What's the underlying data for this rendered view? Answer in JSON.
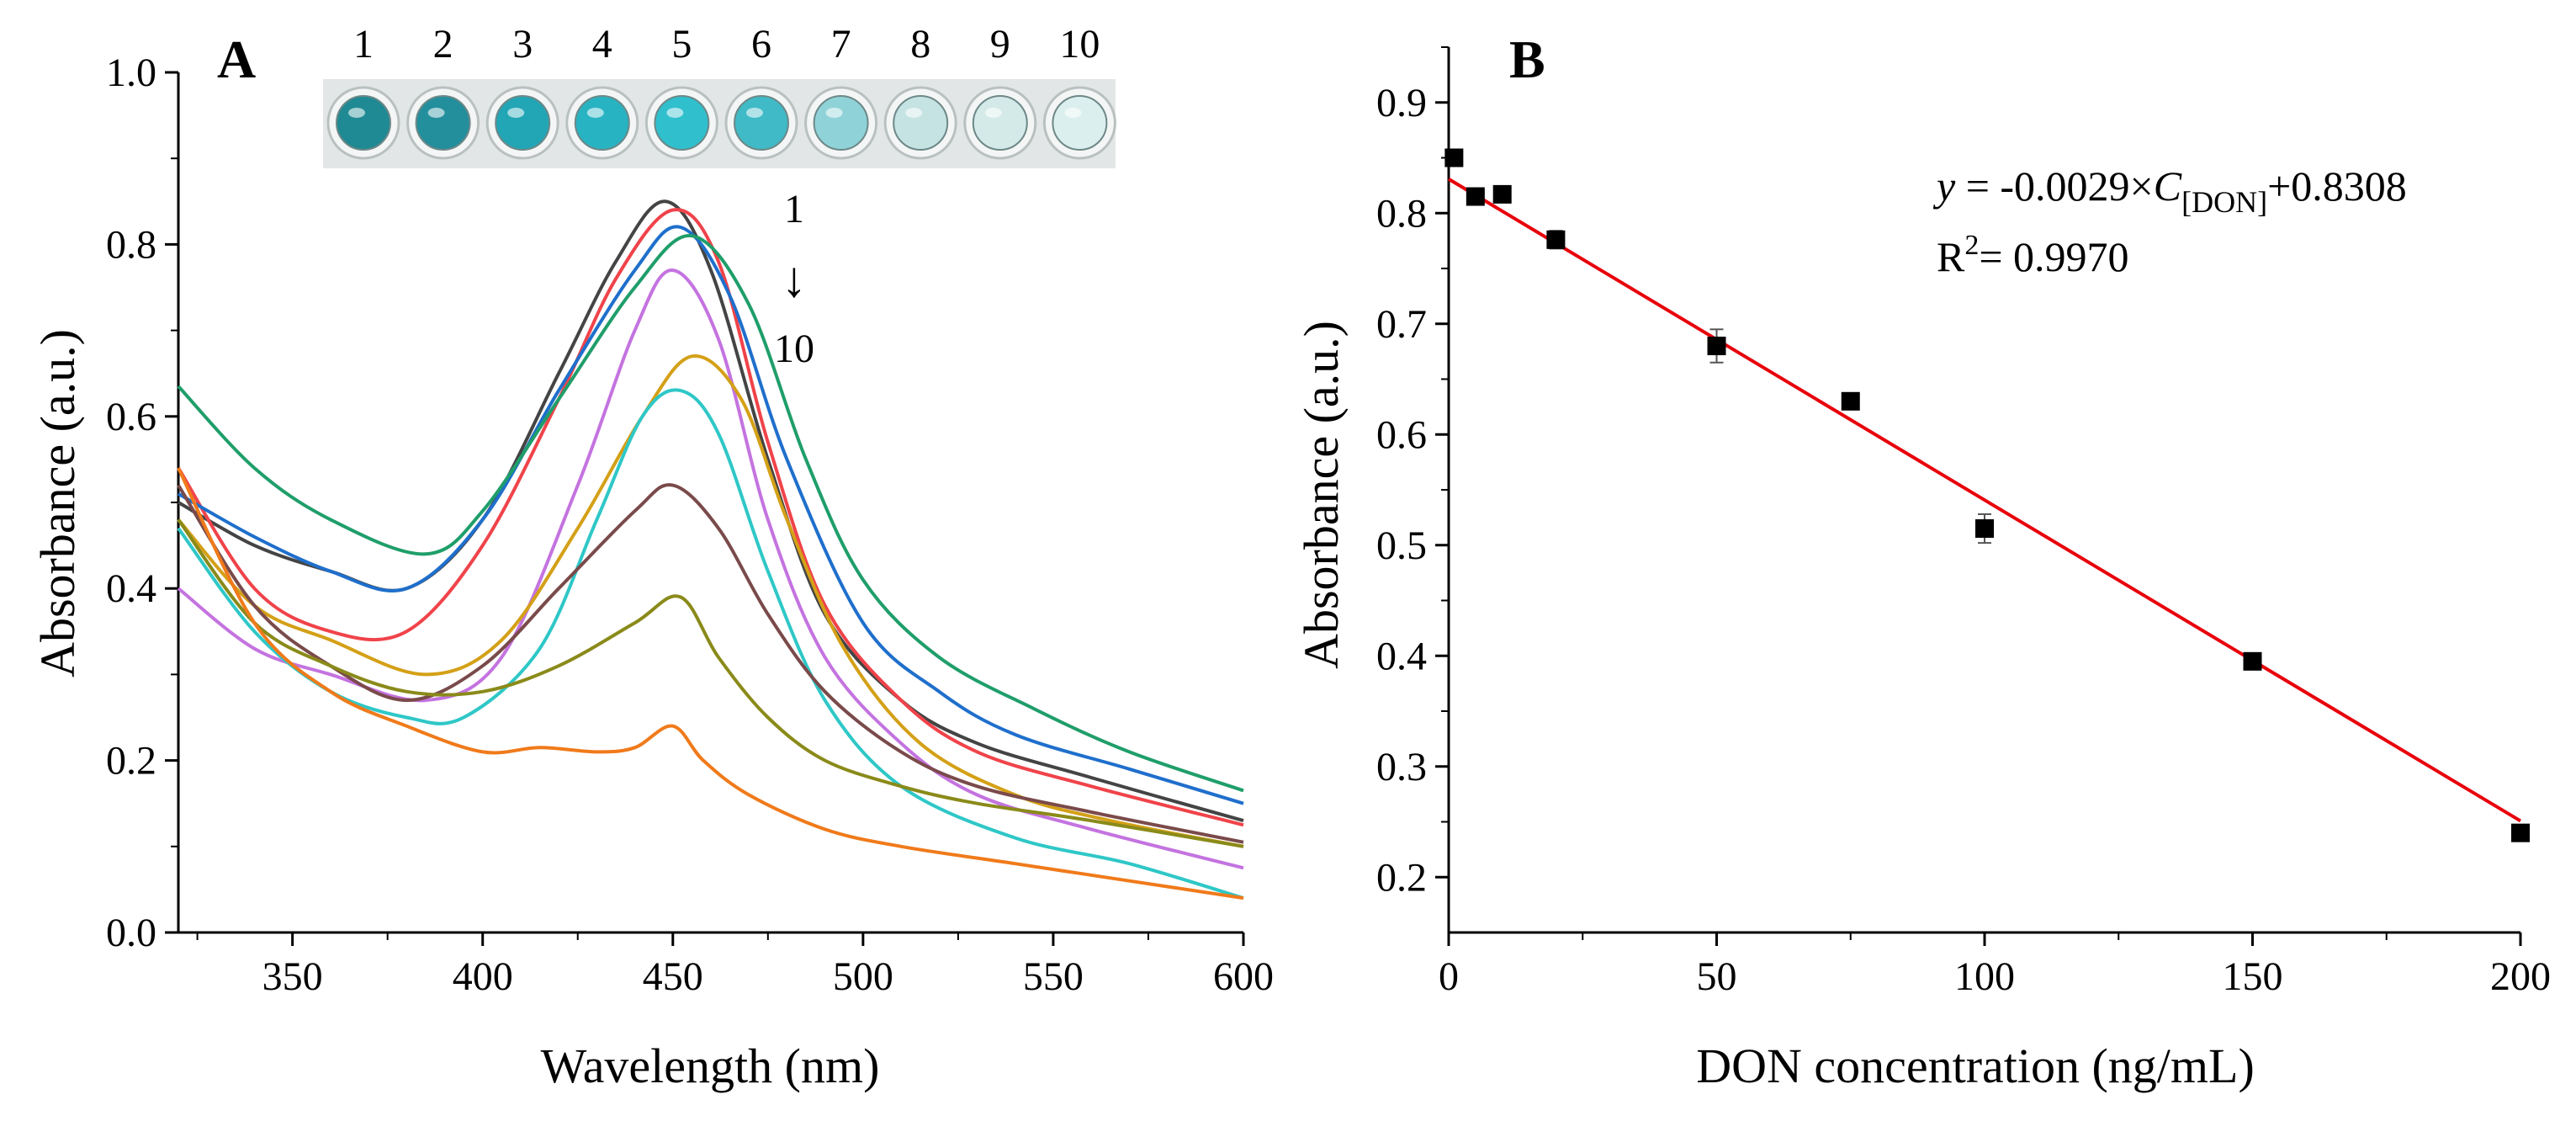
{
  "inset": {
    "well_labels": [
      "1",
      "2",
      "3",
      "4",
      "5",
      "6",
      "7",
      "8",
      "9",
      "10"
    ],
    "well_colors": [
      "#1f8a93",
      "#238f9c",
      "#22a6b5",
      "#28b3c2",
      "#2fbfcd",
      "#3fbac6",
      "#8fd3d8",
      "#c4e3e2",
      "#d3eae9",
      "#dbefee"
    ]
  },
  "chart_data": [
    {
      "type": "line",
      "panel_label": "A",
      "title": "",
      "xlabel": "Wavelength (nm)",
      "ylabel": "Absorbance (a.u.)",
      "xlim": [
        320,
        600
      ],
      "ylim": [
        0.0,
        1.0
      ],
      "xticks": [
        350,
        400,
        450,
        500,
        550,
        600
      ],
      "xtick_labels": [
        "350",
        "400",
        "450",
        "500",
        "550",
        "600"
      ],
      "yticks": [
        0.0,
        0.2,
        0.4,
        0.6,
        0.8,
        1.0
      ],
      "ytick_labels": [
        "0.0",
        "0.2",
        "0.4",
        "0.6",
        "0.8",
        "1.0"
      ],
      "annotation": {
        "top": "1",
        "arrow": "↓",
        "bottom": "10"
      },
      "series": [
        {
          "name": "1",
          "color": "#444444",
          "x": [
            320,
            340,
            360,
            380,
            400,
            420,
            435,
            448,
            460,
            475,
            490,
            510,
            530,
            560,
            600
          ],
          "y": [
            0.5,
            0.45,
            0.42,
            0.4,
            0.48,
            0.65,
            0.78,
            0.85,
            0.77,
            0.55,
            0.37,
            0.27,
            0.22,
            0.18,
            0.13
          ]
        },
        {
          "name": "2",
          "color": "#f0434a",
          "x": [
            320,
            340,
            360,
            380,
            400,
            420,
            435,
            450,
            462,
            475,
            490,
            510,
            530,
            560,
            600
          ],
          "y": [
            0.54,
            0.4,
            0.35,
            0.35,
            0.45,
            0.62,
            0.76,
            0.84,
            0.78,
            0.57,
            0.38,
            0.27,
            0.21,
            0.17,
            0.125
          ]
        },
        {
          "name": "3",
          "color": "#1f6fcc",
          "x": [
            320,
            340,
            360,
            380,
            400,
            420,
            440,
            452,
            465,
            480,
            500,
            520,
            540,
            570,
            600
          ],
          "y": [
            0.51,
            0.46,
            0.42,
            0.4,
            0.48,
            0.63,
            0.77,
            0.82,
            0.74,
            0.55,
            0.36,
            0.28,
            0.23,
            0.19,
            0.15
          ]
        },
        {
          "name": "4",
          "color": "#1f9e6a",
          "x": [
            320,
            340,
            360,
            385,
            400,
            420,
            440,
            455,
            470,
            485,
            500,
            520,
            545,
            570,
            600
          ],
          "y": [
            0.635,
            0.54,
            0.48,
            0.44,
            0.49,
            0.62,
            0.75,
            0.81,
            0.73,
            0.55,
            0.41,
            0.32,
            0.26,
            0.21,
            0.165
          ]
        },
        {
          "name": "5",
          "color": "#c473e0",
          "x": [
            320,
            340,
            360,
            385,
            405,
            425,
            440,
            450,
            462,
            475,
            490,
            510,
            530,
            560,
            600
          ],
          "y": [
            0.4,
            0.33,
            0.3,
            0.27,
            0.32,
            0.52,
            0.7,
            0.77,
            0.69,
            0.48,
            0.32,
            0.22,
            0.16,
            0.12,
            0.075
          ]
        },
        {
          "name": "6",
          "color": "#d4a017",
          "x": [
            320,
            340,
            360,
            385,
            405,
            425,
            442,
            455,
            468,
            480,
            495,
            515,
            540,
            565,
            600
          ],
          "y": [
            0.48,
            0.38,
            0.34,
            0.3,
            0.34,
            0.47,
            0.6,
            0.67,
            0.62,
            0.48,
            0.33,
            0.22,
            0.16,
            0.13,
            0.1
          ]
        },
        {
          "name": "7",
          "color": "#2fc7c7",
          "x": [
            320,
            340,
            360,
            380,
            395,
            415,
            430,
            442,
            452,
            462,
            475,
            490,
            510,
            540,
            570,
            600
          ],
          "y": [
            0.47,
            0.35,
            0.28,
            0.25,
            0.25,
            0.33,
            0.48,
            0.6,
            0.63,
            0.58,
            0.42,
            0.27,
            0.17,
            0.11,
            0.08,
            0.04
          ]
        },
        {
          "name": "8",
          "color": "#7a4a4a",
          "x": [
            320,
            340,
            360,
            380,
            400,
            420,
            440,
            450,
            462,
            475,
            490,
            510,
            530,
            560,
            600
          ],
          "y": [
            0.52,
            0.38,
            0.31,
            0.27,
            0.31,
            0.4,
            0.49,
            0.52,
            0.47,
            0.37,
            0.28,
            0.21,
            0.17,
            0.14,
            0.105
          ]
        },
        {
          "name": "9",
          "color": "#8a8a1a",
          "x": [
            320,
            340,
            360,
            380,
            400,
            420,
            440,
            452,
            462,
            475,
            490,
            510,
            530,
            560,
            600
          ],
          "y": [
            0.48,
            0.36,
            0.31,
            0.28,
            0.28,
            0.31,
            0.36,
            0.39,
            0.32,
            0.25,
            0.2,
            0.17,
            0.15,
            0.13,
            0.1
          ]
        },
        {
          "name": "10",
          "color": "#f07a1a",
          "x": [
            320,
            340,
            360,
            380,
            400,
            415,
            430,
            440,
            450,
            458,
            470,
            490,
            510,
            540,
            570,
            600
          ],
          "y": [
            0.54,
            0.36,
            0.28,
            0.24,
            0.21,
            0.215,
            0.21,
            0.215,
            0.24,
            0.2,
            0.16,
            0.12,
            0.1,
            0.08,
            0.06,
            0.04
          ]
        }
      ]
    },
    {
      "type": "scatter",
      "panel_label": "B",
      "title": "",
      "xlabel": "DON concentration (ng/mL)",
      "ylabel": "Absorbance (a.u.)",
      "xlim": [
        0,
        200
      ],
      "ylim": [
        0.15,
        0.95
      ],
      "xticks": [
        0,
        50,
        100,
        150,
        200
      ],
      "xtick_labels": [
        "0",
        "50",
        "100",
        "150",
        "200"
      ],
      "yticks": [
        0.2,
        0.3,
        0.4,
        0.5,
        0.6,
        0.7,
        0.8,
        0.9
      ],
      "ytick_labels": [
        "0.2",
        "0.3",
        "0.4",
        "0.5",
        "0.6",
        "0.7",
        "0.8",
        "0.9"
      ],
      "points": {
        "x": [
          1,
          5,
          10,
          20,
          50,
          75,
          100,
          150,
          200
        ],
        "y": [
          0.85,
          0.815,
          0.817,
          0.776,
          0.68,
          0.63,
          0.515,
          0.395,
          0.24
        ],
        "error": [
          0.005,
          0.006,
          0.006,
          0.008,
          0.015,
          0.005,
          0.013,
          0.004,
          0.006
        ],
        "color": "#000000"
      },
      "fit_line": {
        "x": [
          0,
          200
        ],
        "y": [
          0.8308,
          0.2508
        ],
        "color": "#e8000b"
      },
      "equation": {
        "y_var": "y",
        "rhs_prefix": " = -0.0029×",
        "c_var": "C",
        "c_sub": "[DON]",
        "rhs_suffix": "+0.8308",
        "r2_base": "R",
        "r2_sup": "2",
        "r2_value": "= 0.9970"
      }
    }
  ]
}
